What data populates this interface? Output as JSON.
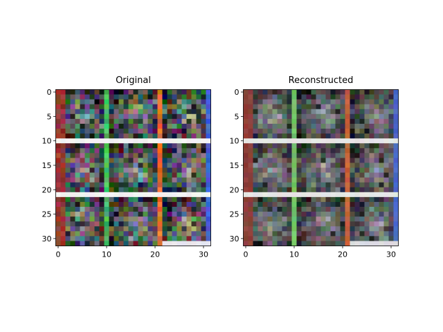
{
  "chart_data": [
    {
      "type": "heatmap",
      "title": "Original",
      "image_size": [
        32,
        32
      ],
      "xlim": [
        -0.5,
        31.5
      ],
      "ylim": [
        31.5,
        -0.5
      ],
      "x_ticks": [
        0,
        10,
        20,
        30
      ],
      "y_ticks": [
        0,
        5,
        10,
        15,
        20,
        25,
        30
      ],
      "grid": false,
      "panel": {
        "tile_grid": 3,
        "row_seams": [
          10,
          21
        ],
        "col_seams": [
          10,
          21
        ],
        "seam_row_colors": [
          "#f2f2f2",
          "#f2f2f2",
          "#e8e8ee"
        ],
        "seam_col_colors": [
          "#43c063",
          "#e2722a",
          "#3f62d8"
        ],
        "left_edge_color": "#9b3a34",
        "right_edge_color": "#3f62d8",
        "noise": 0.95
      }
    },
    {
      "type": "heatmap",
      "title": "Reconstructed",
      "image_size": [
        32,
        32
      ],
      "xlim": [
        -0.5,
        31.5
      ],
      "ylim": [
        31.5,
        -0.5
      ],
      "x_ticks": [
        0,
        10,
        20,
        30
      ],
      "y_ticks": [
        0,
        5,
        10,
        15,
        20,
        25,
        30
      ],
      "grid": false,
      "panel": {
        "tile_grid": 3,
        "row_seams": [
          10,
          21
        ],
        "col_seams": [
          10,
          21
        ],
        "seam_row_colors": [
          "#e6e6e6",
          "#e6e6e6",
          "#dcdce2"
        ],
        "seam_col_colors": [
          "#73c466",
          "#c6613a",
          "#4c68c8"
        ],
        "left_edge_color": "#8c3f3a",
        "right_edge_color": "#4c68c8",
        "noise": 0.45
      }
    }
  ]
}
